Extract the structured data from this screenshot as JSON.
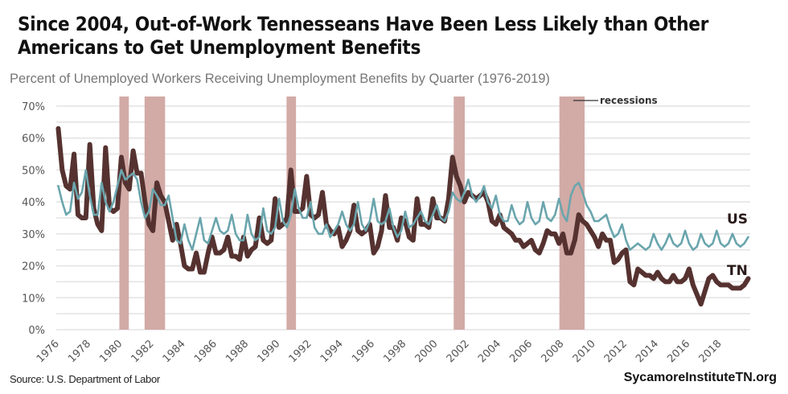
{
  "chart_data": {
    "type": "line",
    "title": "Since 2004, Out-of-Work Tennesseans Have Been Less Likely than Other Americans to Get Unemployment Benefits",
    "subtitle": "Percent of Unemployed Workers Receiving Unemployment Benefits by Quarter (1976-2019)",
    "xlabel": "",
    "ylabel": "",
    "xlim": [
      1976,
      2020
    ],
    "ylim": [
      0,
      70
    ],
    "y_ticks": [
      "0%",
      "10%",
      "20%",
      "30%",
      "40%",
      "50%",
      "60%",
      "70%"
    ],
    "x_ticks": [
      "1976",
      "1978",
      "1980",
      "1982",
      "1984",
      "1986",
      "1988",
      "1990",
      "1992",
      "1994",
      "1996",
      "1998",
      "2000",
      "2002",
      "2004",
      "2006",
      "2008",
      "2010",
      "2012",
      "2014",
      "2016",
      "2018"
    ],
    "grid": true,
    "x_start": 1976,
    "frequency": "quarterly",
    "series": [
      {
        "name": "US",
        "color": "#6aa5ad",
        "values": [
          45,
          40,
          36,
          37,
          46,
          41,
          43,
          50,
          42,
          36,
          36,
          46,
          40,
          37,
          40,
          45,
          50,
          47,
          48,
          49,
          47,
          40,
          35,
          37,
          44,
          42,
          39,
          39,
          42,
          35,
          28,
          27,
          33,
          28,
          25,
          30,
          35,
          28,
          27,
          31,
          35,
          31,
          30,
          31,
          36,
          30,
          28,
          28,
          36,
          30,
          28,
          29,
          38,
          31,
          30,
          32,
          41,
          34,
          32,
          36,
          44,
          38,
          35,
          35,
          40,
          32,
          30,
          30,
          33,
          29,
          31,
          33,
          37,
          33,
          31,
          33,
          40,
          33,
          31,
          34,
          41,
          34,
          33,
          34,
          38,
          32,
          29,
          31,
          37,
          32,
          33,
          35,
          37,
          34,
          33,
          36,
          39,
          35,
          34,
          37,
          43,
          41,
          40,
          43,
          47,
          42,
          40,
          42,
          45,
          40,
          38,
          42,
          36,
          34,
          34,
          39,
          35,
          33,
          34,
          40,
          35,
          33,
          34,
          40,
          35,
          34,
          36,
          41,
          36,
          34,
          42,
          45,
          46,
          43,
          39,
          37,
          34,
          34,
          35,
          36,
          32,
          29,
          30,
          33,
          28,
          25,
          26,
          27,
          26,
          25,
          26,
          30,
          27,
          25,
          27,
          30,
          27,
          26,
          27,
          31,
          27,
          25,
          26,
          30,
          27,
          26,
          27,
          31,
          27,
          26,
          27,
          30,
          27,
          26,
          27,
          29
        ]
      },
      {
        "name": "TN",
        "color": "#553230",
        "values": [
          63,
          50,
          45,
          44,
          55,
          36,
          35,
          35,
          58,
          38,
          33,
          31,
          57,
          38,
          37,
          38,
          54,
          46,
          44,
          56,
          49,
          49,
          40,
          33,
          31,
          46,
          42,
          40,
          34,
          28,
          33,
          27,
          20,
          19,
          19,
          24,
          18,
          18,
          24,
          29,
          24,
          24,
          25,
          29,
          23,
          23,
          22,
          29,
          23,
          25,
          26,
          35,
          28,
          27,
          28,
          41,
          32,
          33,
          35,
          50,
          37,
          37,
          38,
          48,
          36,
          35,
          36,
          43,
          33,
          31,
          30,
          32,
          26,
          28,
          31,
          39,
          31,
          30,
          31,
          33,
          24,
          26,
          31,
          42,
          32,
          32,
          28,
          35,
          34,
          29,
          28,
          41,
          33,
          33,
          32,
          41,
          35,
          35,
          34,
          41,
          54,
          48,
          45,
          40,
          43,
          42,
          41,
          42,
          43,
          40,
          34,
          33,
          36,
          32,
          31,
          30,
          28,
          28,
          26,
          27,
          28,
          25,
          24,
          27,
          31,
          30,
          30,
          27,
          30,
          24,
          24,
          28,
          36,
          34,
          33,
          31,
          29,
          26,
          30,
          28,
          28,
          21,
          22,
          24,
          25,
          15,
          14,
          19,
          18,
          17,
          17,
          16,
          18,
          16,
          15,
          15,
          17,
          15,
          15,
          16,
          19,
          14,
          11,
          8,
          12,
          16,
          17,
          15,
          14,
          14,
          14,
          13,
          13,
          13,
          14,
          16
        ]
      }
    ],
    "recessions": [
      [
        1980.0,
        1980.6
      ],
      [
        1981.6,
        1982.9
      ],
      [
        1990.6,
        1991.2
      ],
      [
        2001.2,
        2001.9
      ],
      [
        2007.9,
        2009.5
      ]
    ],
    "recession_color": "#d2aaa6",
    "recession_label": "recessions",
    "series_labels": {
      "us": "US",
      "tn": "TN"
    }
  },
  "footer": {
    "source": "Source: U.S. Department of Labor",
    "brand": "SycamoreInstituteTN.org"
  }
}
